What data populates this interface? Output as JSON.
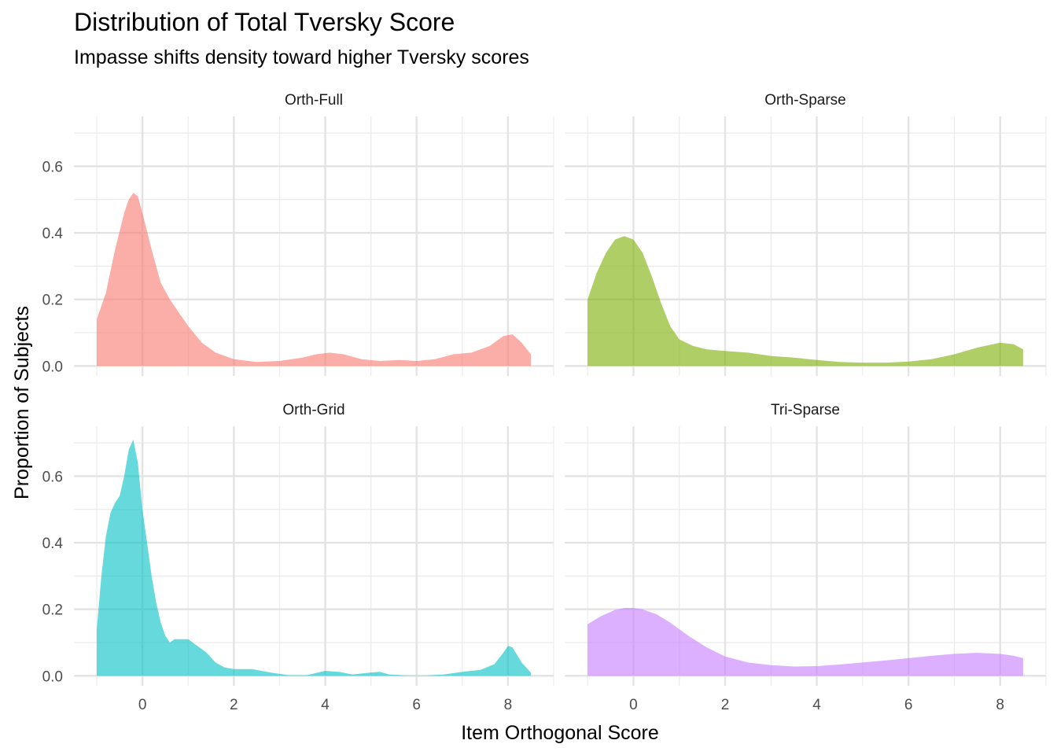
{
  "chart_data": {
    "type": "area",
    "title": "Distribution of Total Tversky Score",
    "subtitle": "Impasse shifts density toward higher Tversky scores",
    "xlabel": "Item Orthogonal Score",
    "ylabel": "Proportion of Subjects",
    "xlim": [
      -1.5,
      9.0
    ],
    "ylim": [
      -0.03,
      0.75
    ],
    "x_ticks": [
      0,
      2,
      4,
      6,
      8
    ],
    "y_ticks": [
      0.0,
      0.2,
      0.4,
      0.6
    ],
    "x_tick_labels": [
      "0",
      "2",
      "4",
      "6",
      "8"
    ],
    "y_tick_labels": [
      "0.0",
      "0.2",
      "0.4",
      "0.6"
    ],
    "grid": true,
    "facets": [
      {
        "name": "Orth-Full",
        "color": "#F8766D",
        "x": [
          -1,
          -0.8,
          -0.6,
          -0.4,
          -0.3,
          -0.2,
          -0.1,
          0,
          0.2,
          0.4,
          0.6,
          0.8,
          1.0,
          1.3,
          1.6,
          2.0,
          2.5,
          3.0,
          3.5,
          3.8,
          4.1,
          4.4,
          4.8,
          5.2,
          5.6,
          6.0,
          6.4,
          6.8,
          7.2,
          7.6,
          7.9,
          8.1,
          8.3,
          8.5
        ],
        "y": [
          0.14,
          0.22,
          0.35,
          0.46,
          0.5,
          0.52,
          0.51,
          0.46,
          0.35,
          0.25,
          0.2,
          0.16,
          0.12,
          0.07,
          0.04,
          0.02,
          0.012,
          0.015,
          0.025,
          0.035,
          0.04,
          0.035,
          0.02,
          0.015,
          0.018,
          0.015,
          0.02,
          0.035,
          0.04,
          0.06,
          0.09,
          0.095,
          0.07,
          0.035
        ]
      },
      {
        "name": "Orth-Sparse",
        "color": "#7CAE00",
        "x": [
          -1,
          -0.8,
          -0.6,
          -0.4,
          -0.2,
          0,
          0.2,
          0.4,
          0.6,
          0.8,
          1.0,
          1.3,
          1.6,
          2.0,
          2.5,
          3.0,
          3.5,
          4.0,
          4.5,
          5.0,
          5.5,
          6.0,
          6.5,
          7.0,
          7.5,
          8.0,
          8.3,
          8.5
        ],
        "y": [
          0.2,
          0.28,
          0.34,
          0.38,
          0.39,
          0.38,
          0.34,
          0.27,
          0.19,
          0.12,
          0.08,
          0.06,
          0.05,
          0.045,
          0.04,
          0.03,
          0.025,
          0.018,
          0.012,
          0.01,
          0.01,
          0.013,
          0.02,
          0.035,
          0.055,
          0.07,
          0.065,
          0.05
        ]
      },
      {
        "name": "Orth-Grid",
        "color": "#00BFC4",
        "x": [
          -1,
          -0.9,
          -0.8,
          -0.7,
          -0.6,
          -0.5,
          -0.4,
          -0.3,
          -0.2,
          -0.1,
          0,
          0.1,
          0.2,
          0.3,
          0.4,
          0.5,
          0.6,
          0.7,
          0.8,
          1.0,
          1.2,
          1.4,
          1.6,
          1.8,
          2.0,
          2.4,
          2.8,
          3.2,
          3.6,
          4.0,
          4.3,
          4.6,
          5.0,
          5.2,
          5.4,
          5.8,
          6.2,
          6.6,
          7.0,
          7.4,
          7.7,
          7.9,
          8.0,
          8.1,
          8.3,
          8.5
        ],
        "y": [
          0.14,
          0.3,
          0.42,
          0.49,
          0.52,
          0.54,
          0.6,
          0.68,
          0.71,
          0.64,
          0.5,
          0.4,
          0.3,
          0.22,
          0.16,
          0.12,
          0.1,
          0.11,
          0.11,
          0.11,
          0.09,
          0.07,
          0.04,
          0.025,
          0.02,
          0.02,
          0.01,
          0.002,
          0.002,
          0.015,
          0.012,
          0.004,
          0.01,
          0.012,
          0.004,
          0.001,
          0.001,
          0.004,
          0.012,
          0.018,
          0.035,
          0.07,
          0.09,
          0.085,
          0.04,
          0.01
        ]
      },
      {
        "name": "Tri-Sparse",
        "color": "#C77CFF",
        "x": [
          -1,
          -0.7,
          -0.4,
          -0.2,
          0,
          0.2,
          0.5,
          0.8,
          1.2,
          1.6,
          2.0,
          2.5,
          3.0,
          3.5,
          4.0,
          4.5,
          5.0,
          5.5,
          6.0,
          6.5,
          7.0,
          7.5,
          8.0,
          8.3,
          8.5
        ],
        "y": [
          0.155,
          0.18,
          0.198,
          0.204,
          0.204,
          0.2,
          0.185,
          0.16,
          0.12,
          0.085,
          0.058,
          0.04,
          0.032,
          0.028,
          0.029,
          0.034,
          0.04,
          0.046,
          0.053,
          0.06,
          0.066,
          0.069,
          0.066,
          0.06,
          0.053
        ]
      }
    ]
  }
}
